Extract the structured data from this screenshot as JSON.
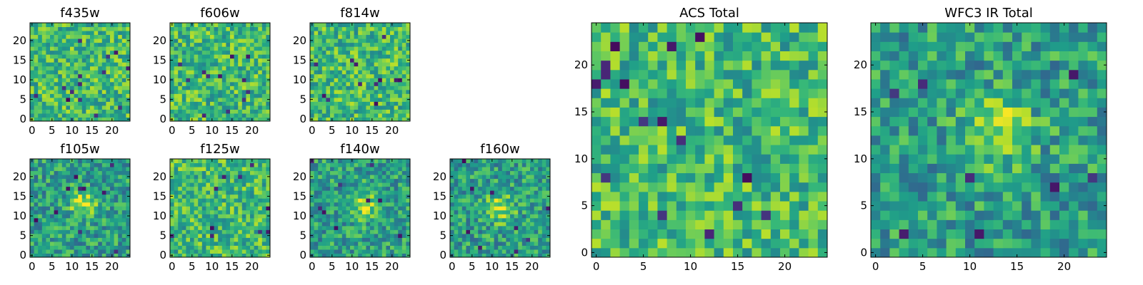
{
  "chart_data": [
    {
      "type": "heatmap",
      "title": "f435w",
      "xlim": [
        0,
        24
      ],
      "ylim": [
        0,
        24
      ],
      "xticks": [
        "0",
        "5",
        "10",
        "15",
        "20"
      ],
      "yticks": [
        "0",
        "5",
        "10",
        "15",
        "20"
      ],
      "colormap": "viridis",
      "bright_spot": null,
      "dark_pixels": 14
    },
    {
      "type": "heatmap",
      "title": "f606w",
      "xlim": [
        0,
        24
      ],
      "ylim": [
        0,
        24
      ],
      "xticks": [
        "0",
        "5",
        "10",
        "15",
        "20"
      ],
      "yticks": [
        "0",
        "5",
        "10",
        "15",
        "20"
      ],
      "colormap": "viridis",
      "bright_spot": null,
      "dark_pixels": 12
    },
    {
      "type": "heatmap",
      "title": "f814w",
      "xlim": [
        0,
        24
      ],
      "ylim": [
        0,
        24
      ],
      "xticks": [
        "0",
        "5",
        "10",
        "15",
        "20"
      ],
      "yticks": [
        "0",
        "5",
        "10",
        "15",
        "20"
      ],
      "colormap": "viridis",
      "bright_spot": null,
      "dark_pixels": 12
    },
    {
      "type": "heatmap",
      "title": "f105w",
      "xlim": [
        0,
        24
      ],
      "ylim": [
        0,
        24
      ],
      "xticks": [
        "0",
        "5",
        "10",
        "15",
        "20"
      ],
      "yticks": [
        "0",
        "5",
        "10",
        "15",
        "20"
      ],
      "colormap": "viridis",
      "bright_spot": [
        13,
        13
      ],
      "dark_pixels": 10
    },
    {
      "type": "heatmap",
      "title": "f125w",
      "xlim": [
        0,
        24
      ],
      "ylim": [
        0,
        24
      ],
      "xticks": [
        "0",
        "5",
        "10",
        "15",
        "20"
      ],
      "yticks": [
        "0",
        "5",
        "10",
        "15",
        "20"
      ],
      "colormap": "viridis",
      "bright_spot": null,
      "dark_pixels": 10
    },
    {
      "type": "heatmap",
      "title": "f140w",
      "xlim": [
        0,
        24
      ],
      "ylim": [
        0,
        24
      ],
      "xticks": [
        "0",
        "5",
        "10",
        "15",
        "20"
      ],
      "yticks": [
        "0",
        "5",
        "10",
        "15",
        "20"
      ],
      "colormap": "viridis",
      "bright_spot": [
        13,
        13
      ],
      "dark_pixels": 9
    },
    {
      "type": "heatmap",
      "title": "f160w",
      "xlim": [
        0,
        24
      ],
      "ylim": [
        0,
        24
      ],
      "xticks": [
        "0",
        "5",
        "10",
        "15",
        "20"
      ],
      "yticks": [
        "0",
        "5",
        "10",
        "15",
        "20"
      ],
      "colormap": "viridis",
      "bright_spot": [
        12,
        12
      ],
      "dark_pixels": 9
    },
    {
      "type": "heatmap",
      "title": "ACS Total",
      "xlim": [
        0,
        24
      ],
      "ylim": [
        0,
        24
      ],
      "xticks": [
        "0",
        "5",
        "10",
        "15",
        "20"
      ],
      "yticks": [
        "0",
        "5",
        "10",
        "15",
        "20"
      ],
      "colormap": "viridis",
      "bright_spot": null,
      "dark_pixels": 16
    },
    {
      "type": "heatmap",
      "title": "WFC3 IR Total",
      "xlim": [
        0,
        24
      ],
      "ylim": [
        0,
        24
      ],
      "xticks": [
        "0",
        "5",
        "10",
        "15",
        "20"
      ],
      "yticks": [
        "0",
        "5",
        "10",
        "15",
        "20"
      ],
      "colormap": "viridis",
      "bright_spot": [
        13,
        13
      ],
      "dark_pixels": 8
    }
  ]
}
